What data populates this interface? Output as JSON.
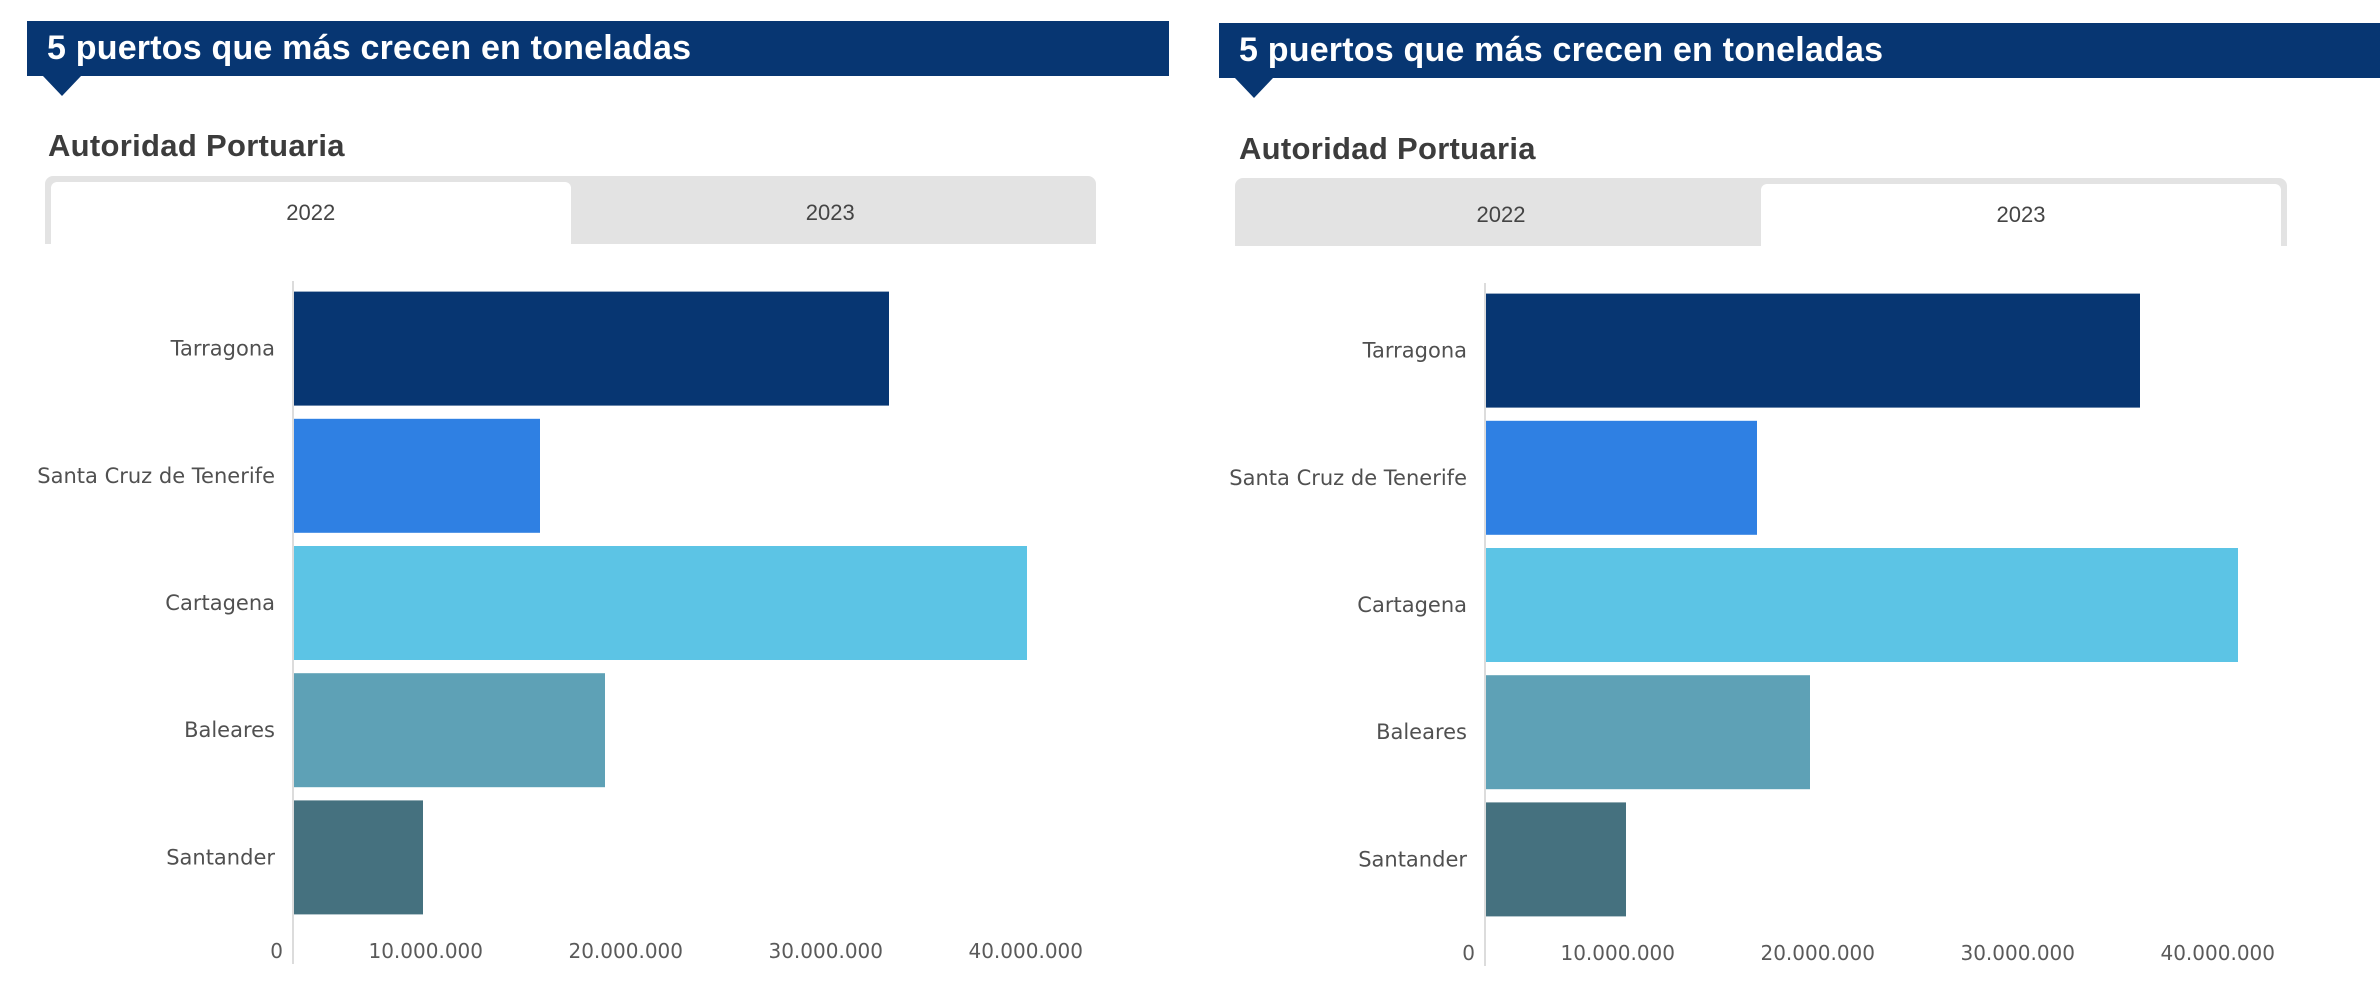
{
  "panels": [
    {
      "header": {
        "title": "5 puertos que más crecen en toneladas"
      },
      "subtitle": "Autoridad Portuaria",
      "tabs": [
        {
          "label": "2022",
          "active": true
        },
        {
          "label": "2023",
          "active": false
        }
      ]
    },
    {
      "header": {
        "title": "5 puertos que más crecen en toneladas"
      },
      "subtitle": "Autoridad Portuaria",
      "tabs": [
        {
          "label": "2022",
          "active": false
        },
        {
          "label": "2023",
          "active": true
        }
      ]
    }
  ],
  "colors": {
    "header": "#073672",
    "tab_bg": "#e3e3e3",
    "bars": [
      "#073672",
      "#2f80e3",
      "#5cc4e5",
      "#5ea1b6",
      "#45717f"
    ]
  },
  "chart_data": [
    {
      "type": "bar",
      "orientation": "horizontal",
      "title": "5 puertos que más crecen en toneladas",
      "subtitle": "Autoridad Portuaria",
      "selected_tab": "2022",
      "categories": [
        "Tarragona",
        "Santa Cruz de Tenerife",
        "Cartagena",
        "Baleares",
        "Santander"
      ],
      "values": [
        29800000,
        12350000,
        36700000,
        15600000,
        6500000
      ],
      "xlabel": "",
      "ylabel": "",
      "xlim": [
        0,
        40000000
      ],
      "x_ticks": [
        0,
        10000000,
        20000000,
        30000000,
        40000000
      ],
      "x_tick_labels": [
        "0",
        "10.000.000",
        "20.000.000",
        "30.000.000",
        "40.000.000"
      ],
      "grid": false,
      "legend": "none"
    },
    {
      "type": "bar",
      "orientation": "horizontal",
      "title": "5 puertos que más crecen en toneladas",
      "subtitle": "Autoridad Portuaria",
      "selected_tab": "2023",
      "categories": [
        "Tarragona",
        "Santa Cruz de Tenerife",
        "Cartagena",
        "Baleares",
        "Santander"
      ],
      "values": [
        32750000,
        13600000,
        37650000,
        16250000,
        7050000
      ],
      "xlabel": "",
      "ylabel": "",
      "xlim": [
        0,
        40000000
      ],
      "x_ticks": [
        0,
        10000000,
        20000000,
        30000000,
        40000000
      ],
      "x_tick_labels": [
        "0",
        "10.000.000",
        "20.000.000",
        "30.000.000",
        "40.000.000"
      ],
      "grid": false,
      "legend": "none"
    }
  ]
}
